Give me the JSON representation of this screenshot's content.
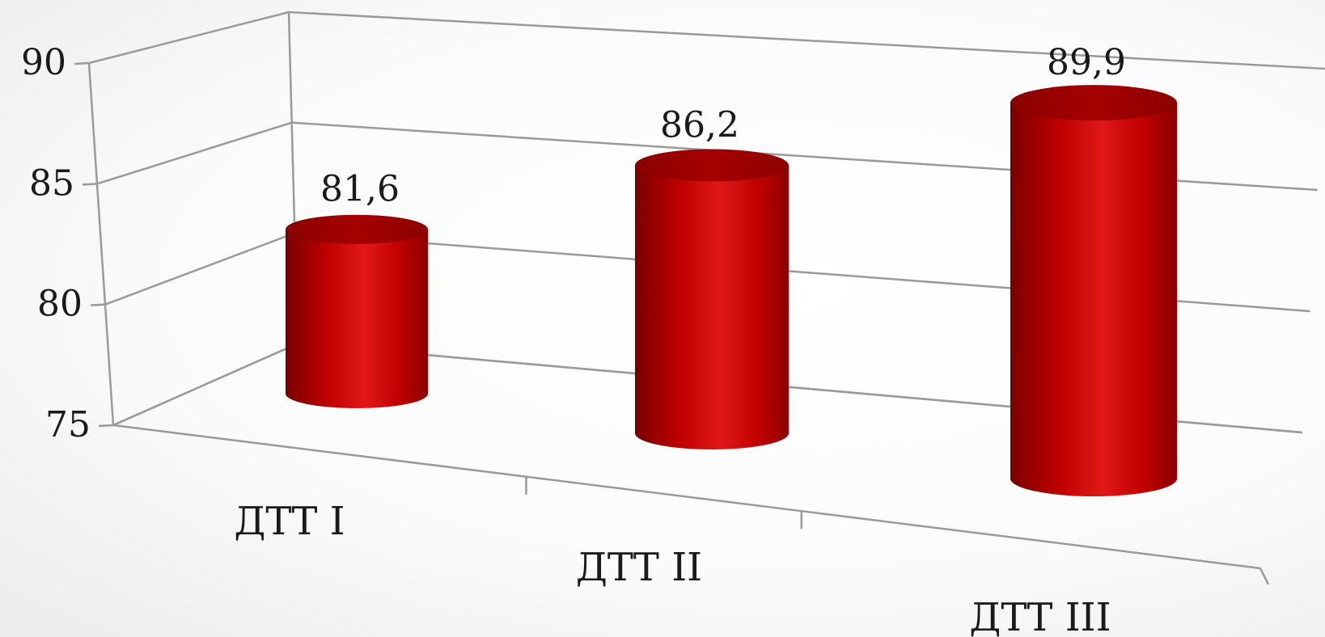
{
  "chart_data": {
    "type": "bar",
    "style": "3d-cylinder",
    "categories": [
      "ДТТ I",
      "ДТТ II",
      "ДТТ III"
    ],
    "values": [
      81.6,
      86.2,
      89.9
    ],
    "data_labels": [
      "81,6",
      "86,2",
      "89,9"
    ],
    "series": [
      {
        "values": [
          81.6,
          86.2,
          89.9
        ],
        "color": "#c00000"
      }
    ],
    "ylim": [
      75,
      90
    ],
    "yticks": [
      75,
      80,
      85,
      90
    ],
    "ytick_labels": [
      "75",
      "80",
      "85",
      "90"
    ],
    "grid": true,
    "legend": "none",
    "colors": {
      "bar": "#c00000",
      "bar_dark": "#7a0000",
      "bar_light": "#e31b1b",
      "top": "#8b0000",
      "grid": "#9a9a9a"
    }
  }
}
